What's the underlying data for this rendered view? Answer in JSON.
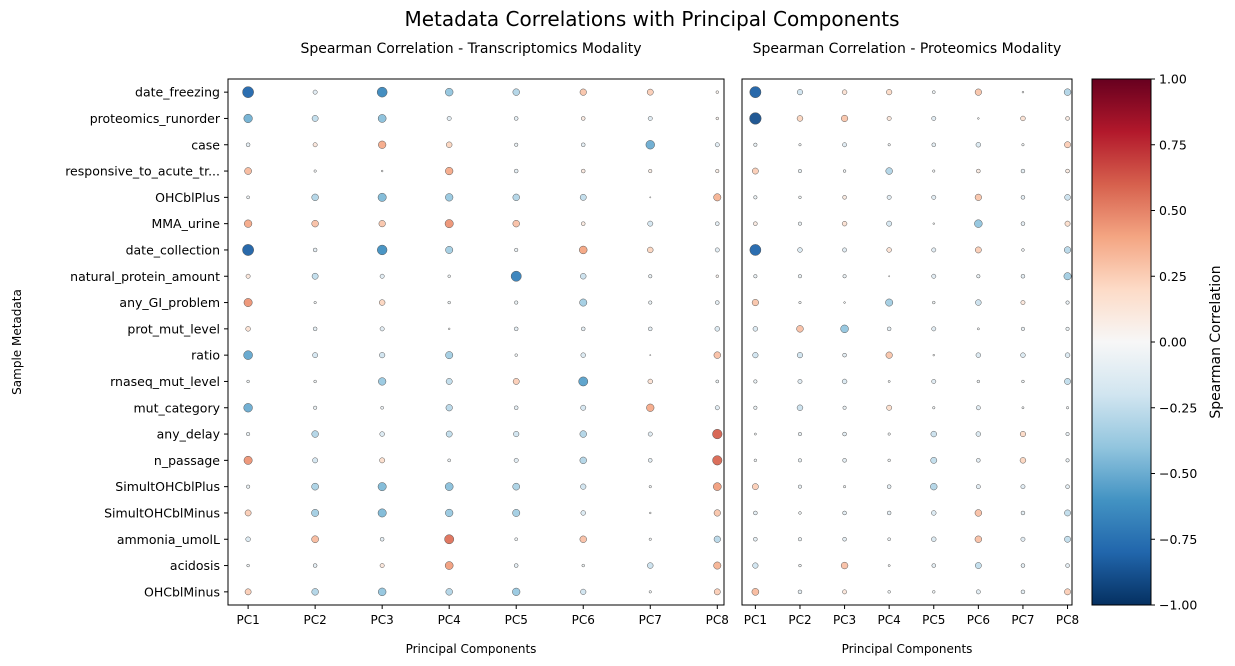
{
  "chart_data": {
    "type": "scatter",
    "title": "Metadata Correlations with Principal Components",
    "ylabel": "Sample Metadata",
    "colorbar": {
      "label": "Spearman Correlation",
      "range": [
        -1,
        1
      ],
      "ticks": [
        "1.00",
        "0.75",
        "0.50",
        "0.25",
        "0.00",
        "−0.25",
        "−0.50",
        "−0.75",
        "−1.00"
      ],
      "tick_values": [
        1,
        0.75,
        0.5,
        0.25,
        0,
        -0.25,
        -0.5,
        -0.75,
        -1
      ],
      "colormap": "RdBu_r"
    },
    "rows": [
      "date_freezing",
      "proteomics_runorder",
      "case",
      "responsive_to_acute_tr...",
      "OHCblPlus",
      "MMA_urine",
      "date_collection",
      "natural_protein_amount",
      "any_GI_problem",
      "prot_mut_level",
      "ratio",
      "rnaseq_mut_level",
      "mut_category",
      "any_delay",
      "n_passage",
      "SimultOHCblPlus",
      "SimultOHCblMinus",
      "ammonia_umolL",
      "acidosis",
      "OHCblMinus"
    ],
    "panels": [
      {
        "subtitle": "Spearman Correlation - Transcriptomics Modality",
        "xlabel": "Principal Components",
        "columns": [
          "PC1",
          "PC2",
          "PC3",
          "PC4",
          "PC5",
          "PC6",
          "PC7",
          "PC8"
        ],
        "values": [
          [
            -0.8,
            -0.12,
            -0.65,
            -0.4,
            -0.3,
            0.28,
            0.25,
            0.05
          ],
          [
            -0.48,
            -0.25,
            -0.42,
            -0.12,
            -0.1,
            0.1,
            -0.12,
            0.05
          ],
          [
            -0.1,
            0.12,
            0.38,
            0.22,
            -0.08,
            -0.1,
            -0.5,
            -0.12
          ],
          [
            0.32,
            -0.04,
            -0.02,
            0.38,
            -0.1,
            0.1,
            0.08,
            0.08
          ],
          [
            -0.06,
            -0.3,
            -0.45,
            -0.38,
            -0.3,
            -0.25,
            0.0,
            0.35
          ],
          [
            0.38,
            0.3,
            0.28,
            0.45,
            0.3,
            0.1,
            -0.18,
            -0.1
          ],
          [
            -0.82,
            -0.1,
            -0.62,
            -0.35,
            -0.08,
            0.4,
            0.22,
            -0.12
          ],
          [
            0.12,
            -0.25,
            -0.12,
            -0.05,
            -0.68,
            -0.22,
            -0.08,
            0.05
          ],
          [
            0.45,
            -0.04,
            0.22,
            -0.05,
            -0.08,
            -0.35,
            -0.08,
            -0.1
          ],
          [
            0.15,
            -0.1,
            -0.12,
            -0.02,
            -0.1,
            -0.1,
            -0.1,
            -0.15
          ],
          [
            -0.52,
            -0.18,
            -0.2,
            -0.35,
            -0.05,
            -0.15,
            0.0,
            0.3
          ],
          [
            -0.05,
            -0.05,
            -0.38,
            -0.25,
            0.25,
            -0.55,
            0.15,
            -0.06
          ],
          [
            -0.5,
            -0.08,
            -0.06,
            -0.28,
            -0.1,
            -0.18,
            0.38,
            -0.12
          ],
          [
            -0.08,
            -0.3,
            -0.15,
            -0.25,
            -0.2,
            -0.3,
            -0.12,
            0.6
          ],
          [
            0.45,
            -0.18,
            0.18,
            -0.06,
            -0.12,
            -0.3,
            -0.1,
            0.58
          ],
          [
            -0.08,
            -0.32,
            -0.45,
            -0.42,
            -0.32,
            -0.2,
            -0.04,
            0.42
          ],
          [
            0.25,
            -0.35,
            -0.45,
            -0.38,
            -0.35,
            -0.15,
            -0.02,
            0.28
          ],
          [
            -0.15,
            0.32,
            -0.1,
            0.55,
            -0.06,
            0.3,
            -0.04,
            -0.28
          ],
          [
            -0.05,
            -0.1,
            0.12,
            0.42,
            -0.1,
            -0.05,
            -0.22,
            0.35
          ],
          [
            0.25,
            -0.3,
            -0.4,
            -0.3,
            -0.38,
            -0.2,
            -0.04,
            0.25
          ]
        ]
      },
      {
        "subtitle": "Spearman Correlation - Proteomics Modality",
        "xlabel": "Principal Components",
        "columns": [
          "PC1",
          "PC2",
          "PC3",
          "PC4",
          "PC5",
          "PC6",
          "PC7",
          "PC8"
        ],
        "values": [
          [
            -0.82,
            -0.2,
            0.15,
            0.2,
            -0.06,
            0.28,
            -0.02,
            -0.3
          ],
          [
            -0.88,
            0.22,
            0.28,
            0.12,
            -0.12,
            -0.02,
            0.15,
            0.1
          ],
          [
            -0.08,
            -0.04,
            -0.12,
            -0.04,
            -0.1,
            -0.15,
            -0.04,
            0.25
          ],
          [
            0.25,
            -0.08,
            -0.05,
            -0.3,
            -0.04,
            0.1,
            -0.1,
            0.1
          ],
          [
            -0.08,
            -0.05,
            0.1,
            -0.12,
            -0.12,
            0.28,
            -0.1,
            -0.22
          ],
          [
            0.1,
            -0.08,
            0.15,
            -0.18,
            -0.02,
            -0.4,
            -0.1,
            0.18
          ],
          [
            -0.8,
            -0.15,
            -0.12,
            0.15,
            -0.12,
            0.25,
            -0.05,
            -0.28
          ],
          [
            -0.08,
            -0.08,
            -0.08,
            0.0,
            -0.12,
            -0.08,
            -0.1,
            -0.35
          ],
          [
            0.28,
            -0.04,
            -0.02,
            -0.35,
            -0.05,
            -0.22,
            0.12,
            -0.08
          ],
          [
            -0.15,
            0.3,
            -0.4,
            -0.1,
            -0.12,
            -0.03,
            -0.08,
            -0.08
          ],
          [
            -0.2,
            -0.2,
            -0.1,
            0.28,
            -0.02,
            -0.15,
            -0.15,
            -0.15
          ],
          [
            -0.08,
            -0.12,
            -0.15,
            -0.03,
            -0.12,
            -0.05,
            -0.05,
            -0.25
          ],
          [
            -0.08,
            -0.22,
            -0.08,
            0.18,
            -0.04,
            -0.12,
            -0.03,
            -0.04
          ],
          [
            -0.03,
            -0.08,
            -0.1,
            -0.04,
            -0.22,
            -0.15,
            0.2,
            -0.08
          ],
          [
            -0.05,
            -0.08,
            -0.1,
            -0.05,
            -0.25,
            -0.1,
            0.22,
            -0.08
          ],
          [
            0.25,
            -0.08,
            -0.04,
            -0.1,
            -0.3,
            -0.12,
            -0.12,
            -0.1
          ],
          [
            -0.1,
            -0.05,
            -0.1,
            -0.1,
            -0.15,
            0.3,
            -0.1,
            -0.25
          ],
          [
            -0.1,
            -0.08,
            -0.1,
            -0.06,
            -0.15,
            0.3,
            -0.12,
            -0.25
          ],
          [
            -0.2,
            -0.05,
            0.3,
            -0.03,
            -0.1,
            -0.25,
            -0.1,
            -0.1
          ],
          [
            0.32,
            -0.1,
            0.12,
            -0.05,
            -0.05,
            -0.12,
            -0.1,
            0.25
          ]
        ]
      }
    ]
  }
}
